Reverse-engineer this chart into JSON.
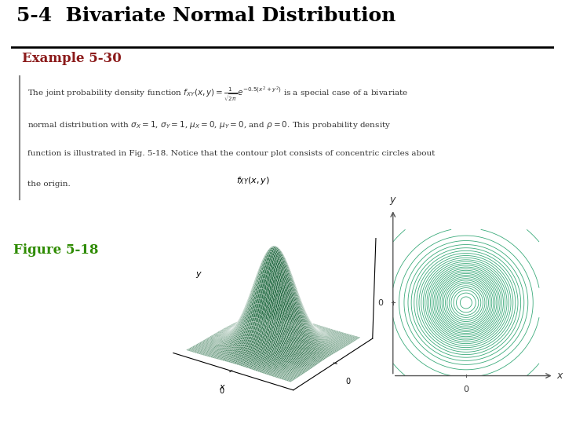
{
  "title": "5-4  Bivariate Normal Distribution",
  "example_label": "Example 5-30",
  "figure_label": "Figure 5-18",
  "body_text_line1": "The joint probability density function $f_{XY}(x, y) = \\frac{1}{\\sqrt{2\\pi}} e^{-0.5(x^2+y^2)}$ is a special case of a bivariate",
  "body_text_line2": "normal distribution with $\\sigma_X = 1$, $\\sigma_Y = 1$, $\\mu_X = 0$, $\\mu_Y = 0$, and $\\rho = 0$. This probability density",
  "body_text_line3": "function is illustrated in Fig. 5-18. Notice that the contour plot consists of concentric circles about",
  "body_text_line4": "the origin.",
  "surface_color": "#2e8b57",
  "contour_color": "#3aaa7a",
  "title_color": "#000000",
  "example_color": "#8b1a1a",
  "figure_color": "#2e8b00",
  "background_color": "#ffffff",
  "text_color": "#333333",
  "title_fontsize": 18,
  "example_fontsize": 12,
  "figure_fontsize": 12,
  "body_fontsize": 7.5
}
